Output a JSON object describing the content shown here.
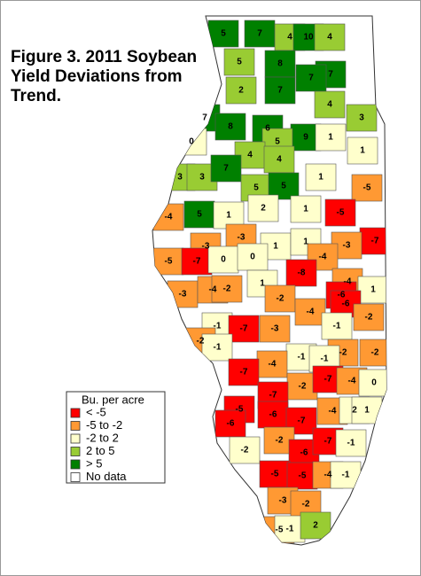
{
  "title": "Figure 3. 2011 Soybean Yield Deviations from Trend.",
  "legend": {
    "title": "Bu. per acre",
    "entries": [
      {
        "label": "< -5",
        "color": "#ff0000"
      },
      {
        "label": "-5 to -2",
        "color": "#ff9933"
      },
      {
        "label": "-2 to 2",
        "color": "#ffffcc"
      },
      {
        "label": "2 to 5",
        "color": "#99cc33"
      },
      {
        "label": "> 5",
        "color": "#008000"
      },
      {
        "label": "No data",
        "color": "#ffffff"
      }
    ]
  },
  "regions": [
    {
      "value": 5,
      "color": "#008000"
    },
    {
      "value": 7,
      "color": "#008000"
    },
    {
      "value": 4,
      "color": "#99cc33"
    },
    {
      "value": 10,
      "color": "#008000"
    },
    {
      "value": 4,
      "color": "#99cc33"
    },
    {
      "value": 5,
      "color": "#99cc33"
    },
    {
      "value": 8,
      "color": "#008000"
    },
    {
      "value": 7,
      "color": "#008000"
    },
    {
      "value": 2,
      "color": "#99cc33"
    },
    {
      "value": 7,
      "color": "#008000"
    },
    {
      "value": 7,
      "color": "#008000"
    },
    {
      "value": 4,
      "color": "#99cc33"
    },
    {
      "value": 3,
      "color": "#99cc33"
    },
    {
      "value": 7,
      "color": "#008000"
    },
    {
      "value": 8,
      "color": "#008000"
    },
    {
      "value": 6,
      "color": "#008000"
    },
    {
      "value": 9,
      "color": "#008000"
    },
    {
      "value": 5,
      "color": "#99cc33"
    },
    {
      "value": 1,
      "color": "#ffffcc"
    },
    {
      "value": 1,
      "color": "#ffffcc"
    },
    {
      "value": 0,
      "color": "#ffffcc"
    },
    {
      "value": 4,
      "color": "#99cc33"
    },
    {
      "value": 4,
      "color": "#99cc33"
    },
    {
      "value": 3,
      "color": "#99cc33"
    },
    {
      "value": 3,
      "color": "#99cc33"
    },
    {
      "value": 7,
      "color": "#008000"
    },
    {
      "value": 5,
      "color": "#99cc33"
    },
    {
      "value": 5,
      "color": "#008000"
    },
    {
      "value": 1,
      "color": "#ffffcc"
    },
    {
      "value": -5,
      "color": "#ff9933"
    },
    {
      "value": -4,
      "color": "#ff9933"
    },
    {
      "value": 5,
      "color": "#008000"
    },
    {
      "value": 1,
      "color": "#ffffcc"
    },
    {
      "value": 2,
      "color": "#ffffcc"
    },
    {
      "value": 1,
      "color": "#ffffcc"
    },
    {
      "value": -5,
      "color": "#ff0000"
    },
    {
      "value": -3,
      "color": "#ff9933"
    },
    {
      "value": -3,
      "color": "#ff9933"
    },
    {
      "value": -7,
      "color": "#ff0000"
    },
    {
      "value": -3,
      "color": "#ff9933"
    },
    {
      "value": 1,
      "color": "#ffffcc"
    },
    {
      "value": 1,
      "color": "#ffffcc"
    },
    {
      "value": -4,
      "color": "#ff9933"
    },
    {
      "value": -5,
      "color": "#ff9933"
    },
    {
      "value": -7,
      "color": "#ff0000"
    },
    {
      "value": 0,
      "color": "#ffffcc"
    },
    {
      "value": 0,
      "color": "#ffffcc"
    },
    {
      "value": -8,
      "color": "#ff0000"
    },
    {
      "value": 1,
      "color": "#ffffcc"
    },
    {
      "value": -4,
      "color": "#ff9933"
    },
    {
      "value": 1,
      "color": "#ffffcc"
    },
    {
      "value": -3,
      "color": "#ff9933"
    },
    {
      "value": -4,
      "color": "#ff9933"
    },
    {
      "value": -2,
      "color": "#ff9933"
    },
    {
      "value": -6,
      "color": "#ff0000"
    },
    {
      "value": -2,
      "color": "#ff9933"
    },
    {
      "value": -4,
      "color": "#ff9933"
    },
    {
      "value": -6,
      "color": "#ff0000"
    },
    {
      "value": -1,
      "color": "#ffffcc"
    },
    {
      "value": -7,
      "color": "#ff0000"
    },
    {
      "value": -3,
      "color": "#ff9933"
    },
    {
      "value": -1,
      "color": "#ffffcc"
    },
    {
      "value": -2,
      "color": "#ff9933"
    },
    {
      "value": -2,
      "color": "#ff9933"
    },
    {
      "value": -1,
      "color": "#ffffcc"
    },
    {
      "value": -2,
      "color": "#ff9933"
    },
    {
      "value": -2,
      "color": "#ff9933"
    },
    {
      "value": -1,
      "color": "#ffffcc"
    },
    {
      "value": -1,
      "color": "#ffffcc"
    },
    {
      "value": -4,
      "color": "#ff9933"
    },
    {
      "value": -7,
      "color": "#ff0000"
    },
    {
      "value": -2,
      "color": "#ff9933"
    },
    {
      "value": -7,
      "color": "#ff0000"
    },
    {
      "value": -4,
      "color": "#ff9933"
    },
    {
      "value": 0,
      "color": "#ffffcc"
    },
    {
      "value": -7,
      "color": "#ff0000"
    },
    {
      "value": -5,
      "color": "#ff0000"
    },
    {
      "value": -6,
      "color": "#ff0000"
    },
    {
      "value": -6,
      "color": "#ff0000"
    },
    {
      "value": -7,
      "color": "#ff0000"
    },
    {
      "value": -4,
      "color": "#ff9933"
    },
    {
      "value": 2,
      "color": "#ffffcc"
    },
    {
      "value": 1,
      "color": "#ffffcc"
    },
    {
      "value": -2,
      "color": "#ff9933"
    },
    {
      "value": -6,
      "color": "#ff0000"
    },
    {
      "value": -7,
      "color": "#ff0000"
    },
    {
      "value": -1,
      "color": "#ffffcc"
    },
    {
      "value": -2,
      "color": "#ffffcc"
    },
    {
      "value": -5,
      "color": "#ff0000"
    },
    {
      "value": -5,
      "color": "#ff0000"
    },
    {
      "value": -4,
      "color": "#ff9933"
    },
    {
      "value": -1,
      "color": "#ffffcc"
    },
    {
      "value": -3,
      "color": "#ff9933"
    },
    {
      "value": -2,
      "color": "#ff9933"
    },
    {
      "value": -5,
      "color": "#ff9933"
    },
    {
      "value": -1,
      "color": "#ffffcc"
    },
    {
      "value": 2,
      "color": "#99cc33"
    }
  ]
}
